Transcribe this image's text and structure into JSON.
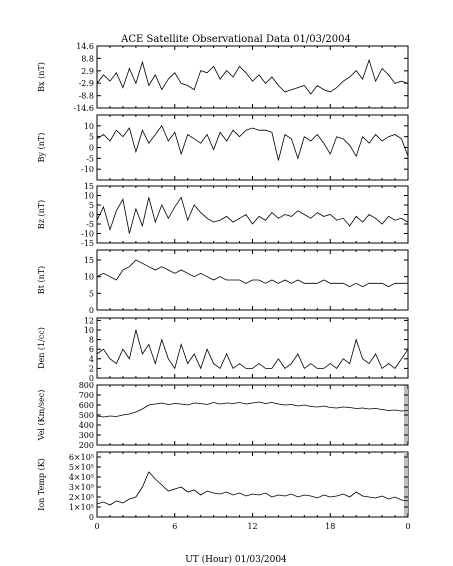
{
  "chart_data": {
    "type": "line",
    "title": "ACE Satellite Observational Data   01/03/2004",
    "xlabel": "UT (Hour)   01/03/2004",
    "x_ticks": [
      "0",
      "6",
      "12",
      "18",
      "0"
    ],
    "xlim": [
      0,
      24
    ],
    "grid": false,
    "panels": [
      {
        "name": "bx",
        "ylabel": "Bx (nT)",
        "ylim": [
          -14.6,
          14.6
        ],
        "yticks": [
          14.6,
          8.8,
          2.9,
          -2.9,
          -8.8,
          -14.6
        ],
        "ytick_labels": [
          "14.6",
          "8.8",
          "2.9",
          "-2.9",
          "-8.8",
          "-14.6"
        ],
        "x": [
          0,
          0.5,
          1,
          1.5,
          2,
          2.5,
          3,
          3.5,
          4,
          4.5,
          5,
          5.5,
          6,
          6.5,
          7,
          7.5,
          8,
          8.5,
          9,
          9.5,
          10,
          10.5,
          11,
          11.5,
          12,
          12.5,
          13,
          13.5,
          14,
          14.5,
          15,
          15.5,
          16,
          16.5,
          17,
          17.5,
          18,
          18.5,
          19,
          19.5,
          20,
          20.5,
          21,
          21.5,
          22,
          22.5,
          23,
          23.5,
          24
        ],
        "y": [
          -3,
          1,
          -2,
          2,
          -5,
          4,
          -3,
          7,
          -4,
          1,
          -6,
          -1,
          2,
          -3,
          -4,
          -6,
          3,
          2,
          5,
          -1,
          3,
          0,
          5,
          2,
          -2,
          1,
          -3,
          0,
          -4,
          -7,
          -6,
          -5,
          -4,
          -8,
          -4,
          -6,
          -7,
          -5,
          -2,
          0,
          3,
          -1,
          8,
          -2,
          4,
          1,
          -3,
          -2,
          -3
        ]
      },
      {
        "name": "by",
        "ylabel": "By (nT)",
        "ylim": [
          -15,
          15
        ],
        "yticks": [
          10,
          5,
          0,
          -5,
          -10
        ],
        "ytick_labels": [
          "10",
          "5",
          "0",
          "-5",
          "-10"
        ],
        "x": [
          0,
          0.5,
          1,
          1.5,
          2,
          2.5,
          3,
          3.5,
          4,
          4.5,
          5,
          5.5,
          6,
          6.5,
          7,
          7.5,
          8,
          8.5,
          9,
          9.5,
          10,
          10.5,
          11,
          11.5,
          12,
          12.5,
          13,
          13.5,
          14,
          14.5,
          15,
          15.5,
          16,
          16.5,
          17,
          17.5,
          18,
          18.5,
          19,
          19.5,
          20,
          20.5,
          21,
          21.5,
          22,
          22.5,
          23,
          23.5,
          24
        ],
        "y": [
          4,
          6,
          3,
          8,
          5,
          9,
          -2,
          8,
          2,
          6,
          10,
          3,
          7,
          -3,
          6,
          4,
          2,
          6,
          -1,
          7,
          3,
          8,
          5,
          8,
          9,
          8,
          8,
          7,
          -6,
          6,
          4,
          -5,
          5,
          3,
          6,
          2,
          -3,
          5,
          4,
          1,
          -4,
          5,
          2,
          6,
          3,
          5,
          6,
          4,
          -4
        ]
      },
      {
        "name": "bz",
        "ylabel": "Bz (nT)",
        "ylim": [
          -15,
          15
        ],
        "yticks": [
          15,
          10,
          5,
          0,
          -5,
          -10,
          -15
        ],
        "ytick_labels": [
          "15",
          "10",
          "5",
          "0",
          "-5",
          "-10",
          "-15"
        ],
        "x": [
          0,
          0.5,
          1,
          1.5,
          2,
          2.5,
          3,
          3.5,
          4,
          4.5,
          5,
          5.5,
          6,
          6.5,
          7,
          7.5,
          8,
          8.5,
          9,
          9.5,
          10,
          10.5,
          11,
          11.5,
          12,
          12.5,
          13,
          13.5,
          14,
          14.5,
          15,
          15.5,
          16,
          16.5,
          17,
          17.5,
          18,
          18.5,
          19,
          19.5,
          20,
          20.5,
          21,
          21.5,
          22,
          22.5,
          23,
          23.5,
          24
        ],
        "y": [
          -3,
          4,
          -8,
          2,
          8,
          -10,
          3,
          -6,
          9,
          -4,
          5,
          -2,
          4,
          9,
          -3,
          5,
          1,
          -2,
          -4,
          -3,
          -1,
          -4,
          -2,
          0,
          -5,
          -1,
          -3,
          1,
          -2,
          0,
          -1,
          2,
          0,
          -2,
          1,
          -1,
          0,
          -3,
          -2,
          -6,
          -1,
          -4,
          0,
          -2,
          -5,
          -1,
          -3,
          -2,
          -4
        ]
      },
      {
        "name": "bt",
        "ylabel": "Bt (nT)",
        "ylim": [
          0,
          18
        ],
        "yticks": [
          15,
          10,
          5,
          0
        ],
        "ytick_labels": [
          "15",
          "10",
          "5",
          "0"
        ],
        "x": [
          0,
          0.5,
          1,
          1.5,
          2,
          2.5,
          3,
          3.5,
          4,
          4.5,
          5,
          5.5,
          6,
          6.5,
          7,
          7.5,
          8,
          8.5,
          9,
          9.5,
          10,
          10.5,
          11,
          11.5,
          12,
          12.5,
          13,
          13.5,
          14,
          14.5,
          15,
          15.5,
          16,
          16.5,
          17,
          17.5,
          18,
          18.5,
          19,
          19.5,
          20,
          20.5,
          21,
          21.5,
          22,
          22.5,
          23,
          23.5,
          24
        ],
        "y": [
          10,
          11,
          10,
          9,
          12,
          13,
          15,
          14,
          13,
          12,
          13,
          12,
          11,
          12,
          11,
          10,
          11,
          10,
          9,
          10,
          9,
          9,
          9,
          8,
          9,
          9,
          8,
          9,
          8,
          9,
          8,
          9,
          8,
          8,
          8,
          9,
          8,
          8,
          8,
          7,
          8,
          7,
          8,
          8,
          8,
          7,
          8,
          8,
          8
        ]
      },
      {
        "name": "den",
        "ylabel": "Den (1/cc)",
        "ylim": [
          0,
          12.5
        ],
        "yticks": [
          12,
          10,
          8,
          6,
          4,
          2,
          0
        ],
        "ytick_labels": [
          "12",
          "10",
          "8",
          "6",
          "4",
          "2",
          "0"
        ],
        "x": [
          0,
          0.5,
          1,
          1.5,
          2,
          2.5,
          3,
          3.5,
          4,
          4.5,
          5,
          5.5,
          6,
          6.5,
          7,
          7.5,
          8,
          8.5,
          9,
          9.5,
          10,
          10.5,
          11,
          11.5,
          12,
          12.5,
          13,
          13.5,
          14,
          14.5,
          15,
          15.5,
          16,
          16.5,
          17,
          17.5,
          18,
          18.5,
          19,
          19.5,
          20,
          20.5,
          21,
          21.5,
          22,
          22.5,
          23,
          23.5,
          24
        ],
        "y": [
          5,
          6,
          4,
          3,
          6,
          4,
          10,
          5,
          7,
          3,
          8,
          4,
          2,
          7,
          3,
          5,
          2,
          6,
          3,
          2,
          5,
          2,
          3,
          2,
          2,
          3,
          2,
          2,
          4,
          2,
          3,
          5,
          2,
          3,
          2,
          2,
          3,
          2,
          4,
          3,
          8,
          4,
          3,
          5,
          2,
          3,
          2,
          4,
          6
        ]
      },
      {
        "name": "vel",
        "ylabel": "Vel (Km/sec)",
        "ylim": [
          200,
          800
        ],
        "yticks": [
          800,
          700,
          600,
          500,
          400,
          300,
          200
        ],
        "ytick_labels": [
          "800",
          "700",
          "600",
          "500",
          "400",
          "300",
          "200"
        ],
        "x": [
          0,
          0.5,
          1,
          1.5,
          2,
          2.5,
          3,
          3.5,
          4,
          4.5,
          5,
          5.5,
          6,
          6.5,
          7,
          7.5,
          8,
          8.5,
          9,
          9.5,
          10,
          10.5,
          11,
          11.5,
          12,
          12.5,
          13,
          13.5,
          14,
          14.5,
          15,
          15.5,
          16,
          16.5,
          17,
          17.5,
          18,
          18.5,
          19,
          19.5,
          20,
          20.5,
          21,
          21.5,
          22,
          22.5,
          23,
          23.5,
          24
        ],
        "y": [
          490,
          480,
          490,
          485,
          500,
          510,
          530,
          560,
          600,
          610,
          620,
          605,
          615,
          610,
          600,
          620,
          615,
          605,
          625,
          610,
          620,
          615,
          625,
          610,
          620,
          630,
          615,
          625,
          610,
          600,
          605,
          590,
          600,
          585,
          580,
          590,
          575,
          570,
          580,
          575,
          565,
          570,
          560,
          565,
          555,
          545,
          550,
          540,
          545
        ]
      },
      {
        "name": "temp",
        "ylabel": "Ion Temp (K)",
        "ylim": [
          0,
          650000
        ],
        "yticks": [
          600000,
          500000,
          400000,
          300000,
          200000,
          100000,
          0
        ],
        "ytick_labels": [
          "6×10⁵",
          "5×10⁵",
          "4×10⁵",
          "3×10⁵",
          "2×10⁵",
          "1×10⁵",
          "0"
        ],
        "x": [
          0,
          0.5,
          1,
          1.5,
          2,
          2.5,
          3,
          3.5,
          4,
          4.5,
          5,
          5.5,
          6,
          6.5,
          7,
          7.5,
          8,
          8.5,
          9,
          9.5,
          10,
          10.5,
          11,
          11.5,
          12,
          12.5,
          13,
          13.5,
          14,
          14.5,
          15,
          15.5,
          16,
          16.5,
          17,
          17.5,
          18,
          18.5,
          19,
          19.5,
          20,
          20.5,
          21,
          21.5,
          22,
          22.5,
          23,
          23.5,
          24
        ],
        "y": [
          130000,
          150000,
          120000,
          160000,
          140000,
          180000,
          200000,
          300000,
          450000,
          380000,
          320000,
          260000,
          280000,
          300000,
          250000,
          270000,
          220000,
          260000,
          240000,
          230000,
          250000,
          220000,
          240000,
          210000,
          230000,
          220000,
          240000,
          200000,
          220000,
          210000,
          230000,
          200000,
          220000,
          210000,
          190000,
          220000,
          200000,
          210000,
          230000,
          200000,
          250000,
          210000,
          200000,
          190000,
          210000,
          180000,
          200000,
          170000,
          160000
        ]
      }
    ]
  }
}
